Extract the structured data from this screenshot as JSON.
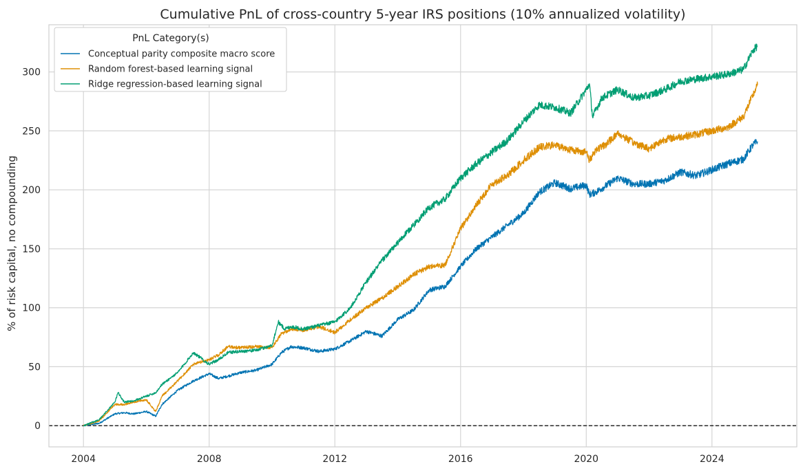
{
  "chart_data": {
    "type": "line",
    "title": "Cumulative PnL of cross-country 5-year IRS positions (10% annualized volatility)",
    "xlabel": "",
    "ylabel": "% of risk capital, no compounding",
    "xlim": [
      2002.9,
      2026.7
    ],
    "ylim": [
      -18,
      340
    ],
    "xticks": [
      2004,
      2008,
      2012,
      2016,
      2020,
      2024
    ],
    "yticks": [
      0,
      50,
      100,
      150,
      200,
      250,
      300
    ],
    "grid": true,
    "zero_line": 0,
    "legend": {
      "title": "PnL Category(s)",
      "placement": "top-left"
    },
    "colors": {
      "grid": "#d5d5d5",
      "spine": "#cfcfcf",
      "zero_line": "#000000"
    },
    "series": [
      {
        "name": "Conceptual parity composite macro score",
        "color": "#0173b2",
        "x": [
          2004.0,
          2004.5,
          2005.0,
          2005.3,
          2005.6,
          2006.0,
          2006.3,
          2006.5,
          2007.0,
          2007.5,
          2008.0,
          2008.3,
          2008.6,
          2009.0,
          2009.5,
          2010.0,
          2010.3,
          2010.6,
          2011.0,
          2011.5,
          2012.0,
          2012.5,
          2013.0,
          2013.5,
          2014.0,
          2014.5,
          2015.0,
          2015.5,
          2016.0,
          2016.5,
          2017.0,
          2017.5,
          2018.0,
          2018.5,
          2019.0,
          2019.5,
          2020.0,
          2020.1,
          2020.3,
          2020.6,
          2021.0,
          2021.5,
          2022.0,
          2022.5,
          2023.0,
          2023.5,
          2024.0,
          2024.5,
          2025.0,
          2025.3,
          2025.45
        ],
        "values": [
          0,
          2,
          10,
          11,
          10,
          12,
          8,
          18,
          30,
          38,
          44,
          40,
          42,
          45,
          47,
          52,
          62,
          67,
          66,
          63,
          65,
          72,
          80,
          76,
          90,
          98,
          115,
          118,
          135,
          150,
          160,
          170,
          180,
          198,
          206,
          201,
          204,
          196,
          198,
          203,
          210,
          205,
          205,
          208,
          215,
          212,
          217,
          222,
          226,
          238,
          241
        ]
      },
      {
        "name": "Random forest-based learning signal",
        "color": "#de8f05",
        "x": [
          2004.0,
          2004.5,
          2005.0,
          2005.3,
          2005.6,
          2006.0,
          2006.3,
          2006.5,
          2007.0,
          2007.5,
          2008.0,
          2008.3,
          2008.6,
          2009.0,
          2009.5,
          2010.0,
          2010.3,
          2010.6,
          2011.0,
          2011.5,
          2012.0,
          2012.5,
          2013.0,
          2013.5,
          2014.0,
          2014.5,
          2015.0,
          2015.5,
          2016.0,
          2016.5,
          2017.0,
          2017.5,
          2018.0,
          2018.5,
          2019.0,
          2019.5,
          2020.0,
          2020.1,
          2020.3,
          2020.6,
          2021.0,
          2021.5,
          2022.0,
          2022.5,
          2023.0,
          2023.5,
          2024.0,
          2024.5,
          2025.0,
          2025.3,
          2025.45
        ],
        "values": [
          0,
          4,
          18,
          18,
          20,
          22,
          12,
          25,
          38,
          52,
          56,
          60,
          67,
          66,
          67,
          66,
          78,
          82,
          81,
          84,
          79,
          90,
          100,
          108,
          118,
          128,
          135,
          136,
          167,
          187,
          205,
          212,
          225,
          236,
          238,
          234,
          232,
          225,
          234,
          238,
          248,
          240,
          235,
          243,
          245,
          247,
          250,
          253,
          262,
          280,
          289
        ]
      },
      {
        "name": "Ridge regression-based learning signal",
        "color": "#029e73",
        "x": [
          2004.0,
          2004.5,
          2005.0,
          2005.1,
          2005.3,
          2005.6,
          2006.0,
          2006.3,
          2006.5,
          2007.0,
          2007.5,
          2008.0,
          2008.3,
          2008.6,
          2009.0,
          2009.5,
          2010.0,
          2010.2,
          2010.4,
          2010.6,
          2011.0,
          2011.5,
          2012.0,
          2012.5,
          2013.0,
          2013.5,
          2014.0,
          2014.5,
          2015.0,
          2015.5,
          2016.0,
          2016.5,
          2017.0,
          2017.5,
          2018.0,
          2018.5,
          2019.0,
          2019.5,
          2020.0,
          2020.1,
          2020.2,
          2020.5,
          2021.0,
          2021.5,
          2022.0,
          2022.5,
          2023.0,
          2023.5,
          2024.0,
          2024.5,
          2025.0,
          2025.3,
          2025.45
        ],
        "values": [
          0,
          5,
          20,
          28,
          20,
          21,
          25,
          28,
          35,
          45,
          62,
          52,
          56,
          62,
          63,
          64,
          68,
          88,
          82,
          84,
          82,
          85,
          88,
          100,
          122,
          140,
          155,
          170,
          185,
          192,
          210,
          222,
          232,
          242,
          258,
          272,
          270,
          265,
          285,
          290,
          262,
          278,
          285,
          278,
          280,
          285,
          292,
          294,
          296,
          298,
          302,
          318,
          322
        ]
      }
    ]
  }
}
